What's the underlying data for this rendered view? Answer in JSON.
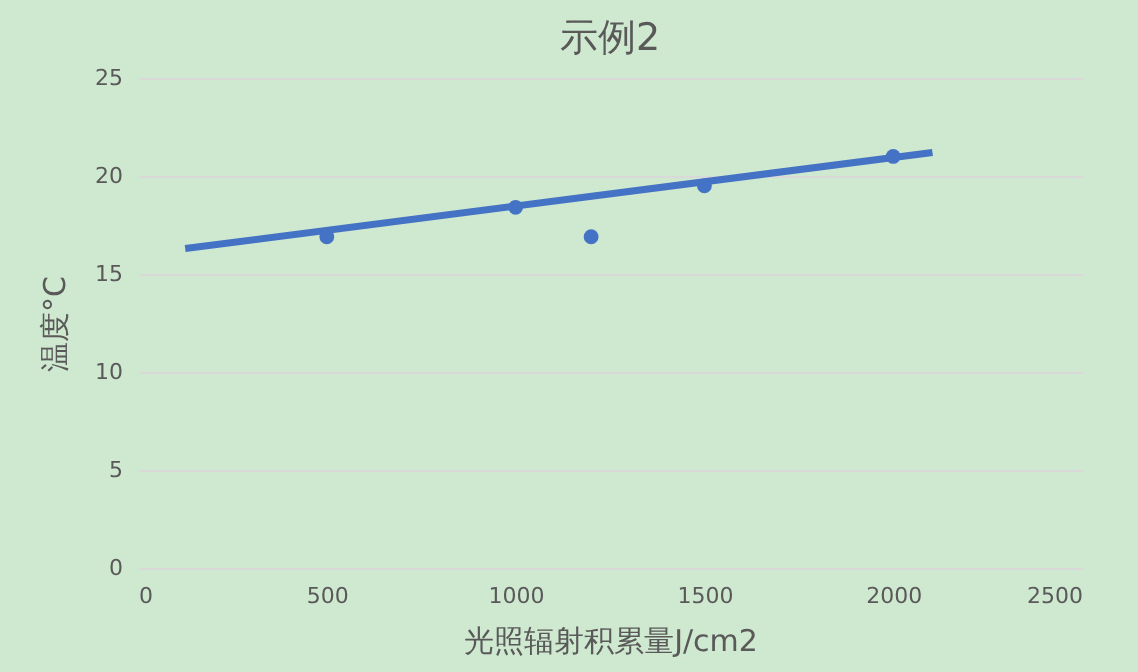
{
  "chart_data": {
    "type": "scatter",
    "title": "示例2",
    "xlabel": "光照辐射积累量J/cm2",
    "ylabel": "温度°C",
    "series": [
      {
        "color": "#4472c4",
        "marker": "circle",
        "x": [
          500,
          1000,
          1200,
          1500,
          2000
        ],
        "values": [
          16.9,
          18.4,
          16.9,
          19.5,
          21.0
        ]
      },
      {
        "type": "line",
        "marker": "none",
        "color": "#4472c4",
        "x": [
          125,
          2104
        ],
        "values": [
          16.3,
          21.2
        ]
      }
    ],
    "xlim": [
      0,
      2500
    ],
    "xticks": [
      0,
      500,
      1000,
      1500,
      2000,
      2500
    ],
    "ylim": [
      0,
      25
    ],
    "yticks": [
      0,
      5,
      10,
      15,
      20,
      25
    ],
    "grid": "y"
  }
}
